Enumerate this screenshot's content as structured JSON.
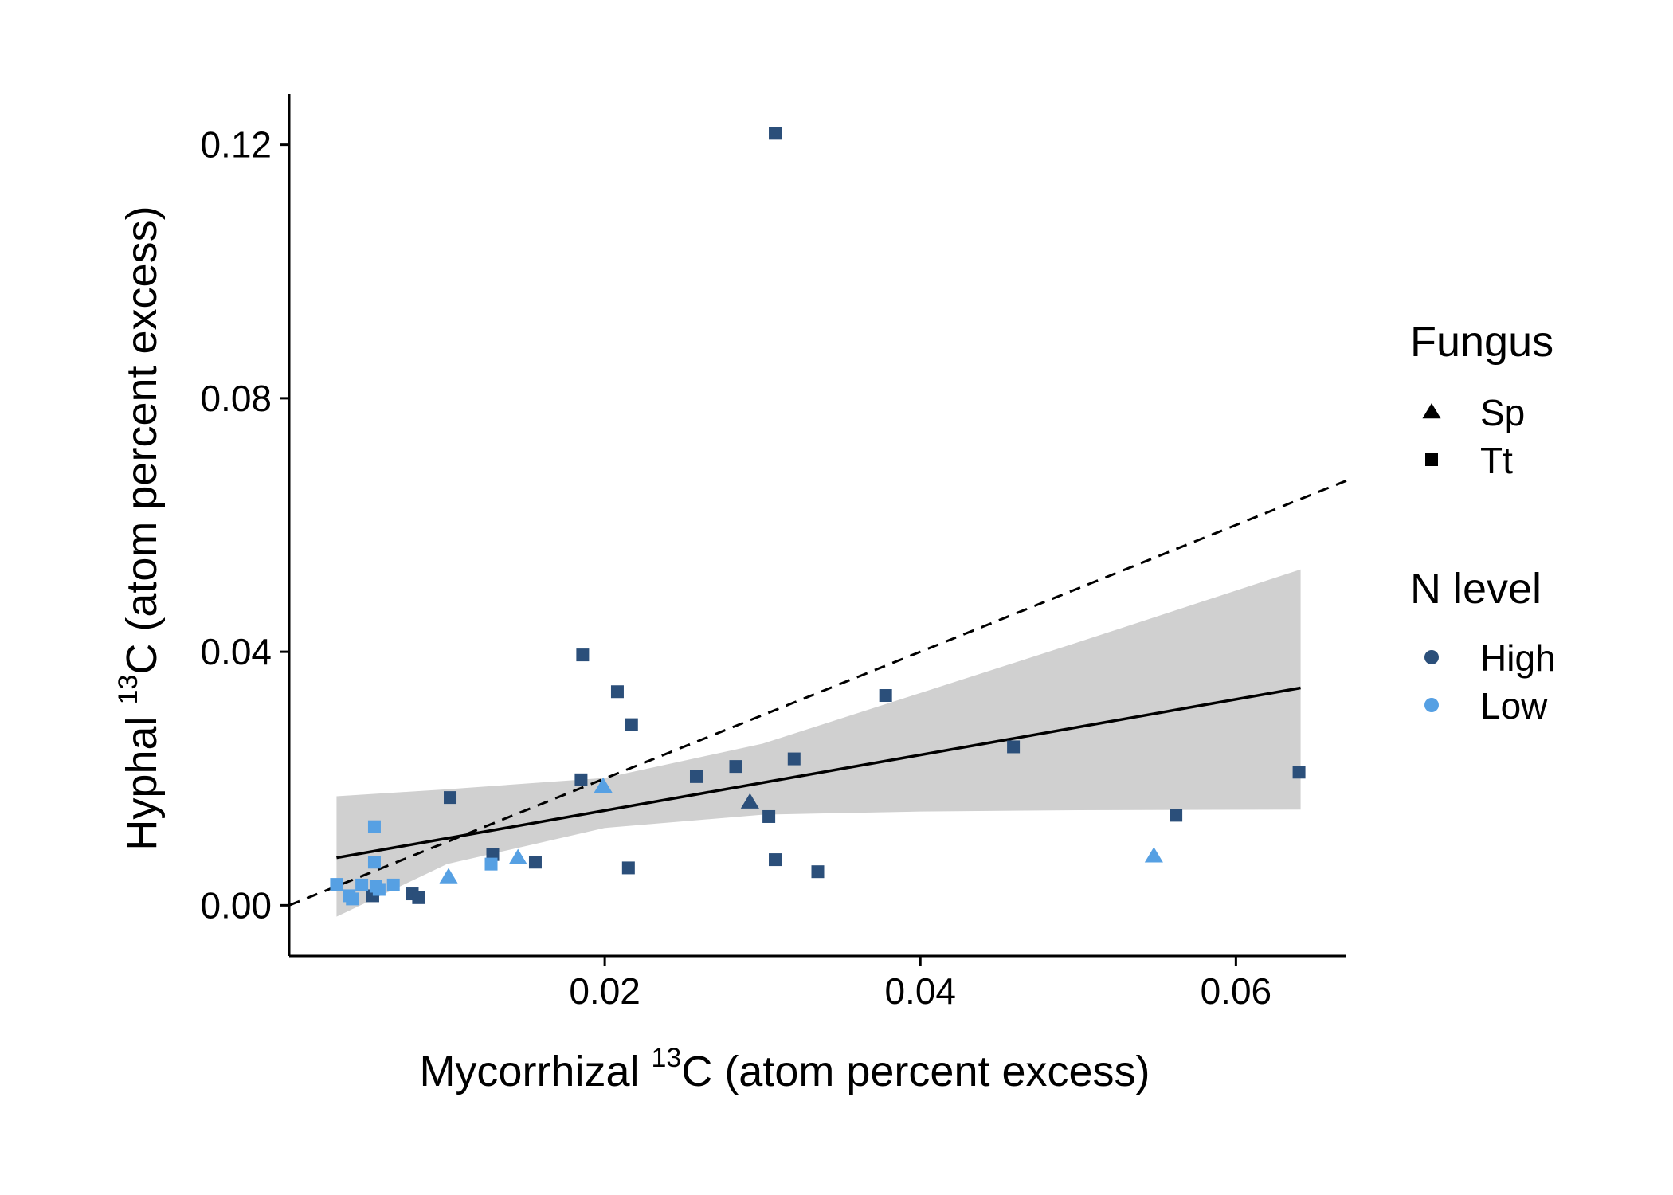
{
  "chart_data": {
    "type": "scatter",
    "xlabel": {
      "pre": "Mycorrhizal ",
      "sup": "13",
      "post": "C (atom percent excess)"
    },
    "ylabel": {
      "pre": "Hyphal ",
      "sup": "13",
      "post": "C (atom percent excess)"
    },
    "xlim": [
      0.0,
      0.067
    ],
    "ylim": [
      -0.008,
      0.128
    ],
    "x_ticks": [
      0.02,
      0.04,
      0.06
    ],
    "y_ticks": [
      0.0,
      0.04,
      0.08,
      0.12
    ],
    "x_tick_labels": [
      "0.02",
      "0.04",
      "0.06"
    ],
    "y_tick_labels": [
      "0.00",
      "0.04",
      "0.08",
      "0.12"
    ],
    "grid": false,
    "legend_position": "right",
    "colors": {
      "High": "#2b4f7a",
      "Low": "#56a0e3",
      "band": "#d0d0d0",
      "line": "#000000"
    },
    "legends": [
      {
        "title": "Fungus",
        "entries": [
          {
            "label": "Sp",
            "shape": "triangle"
          },
          {
            "label": "Tt",
            "shape": "square"
          }
        ]
      },
      {
        "title": "N level",
        "entries": [
          {
            "label": "High",
            "color": "#2b4f7a"
          },
          {
            "label": "Low",
            "color": "#56a0e3"
          }
        ]
      }
    ],
    "reference_line": {
      "style": "dashed",
      "slope": 1,
      "intercept": 0,
      "x_range": [
        0.0,
        0.067
      ]
    },
    "fit": {
      "x": [
        0.003,
        0.0641
      ],
      "y": [
        0.0075,
        0.0343
      ],
      "band": {
        "x": [
          0.003,
          0.01,
          0.02,
          0.03,
          0.04,
          0.05,
          0.0641
        ],
        "lower": [
          -0.0018,
          0.0065,
          0.0122,
          0.0143,
          0.0148,
          0.015,
          0.0151
        ],
        "upper": [
          0.0172,
          0.0183,
          0.0201,
          0.0255,
          0.0335,
          0.0415,
          0.053
        ]
      }
    },
    "points": [
      {
        "x": 0.0308,
        "y": 0.1218,
        "fungus": "Tt",
        "n": "High"
      },
      {
        "x": 0.0186,
        "y": 0.0395,
        "fungus": "Tt",
        "n": "High"
      },
      {
        "x": 0.0208,
        "y": 0.0337,
        "fungus": "Tt",
        "n": "High"
      },
      {
        "x": 0.0217,
        "y": 0.0285,
        "fungus": "Tt",
        "n": "High"
      },
      {
        "x": 0.0378,
        "y": 0.0331,
        "fungus": "Tt",
        "n": "High"
      },
      {
        "x": 0.0459,
        "y": 0.025,
        "fungus": "Tt",
        "n": "High"
      },
      {
        "x": 0.032,
        "y": 0.0231,
        "fungus": "Tt",
        "n": "High"
      },
      {
        "x": 0.0283,
        "y": 0.0219,
        "fungus": "Tt",
        "n": "High"
      },
      {
        "x": 0.0258,
        "y": 0.0203,
        "fungus": "Tt",
        "n": "High"
      },
      {
        "x": 0.0185,
        "y": 0.0198,
        "fungus": "Tt",
        "n": "High"
      },
      {
        "x": 0.064,
        "y": 0.021,
        "fungus": "Tt",
        "n": "High"
      },
      {
        "x": 0.0102,
        "y": 0.017,
        "fungus": "Tt",
        "n": "High"
      },
      {
        "x": 0.0304,
        "y": 0.014,
        "fungus": "Tt",
        "n": "High"
      },
      {
        "x": 0.0562,
        "y": 0.0142,
        "fungus": "Tt",
        "n": "High"
      },
      {
        "x": 0.0129,
        "y": 0.008,
        "fungus": "Tt",
        "n": "High"
      },
      {
        "x": 0.0156,
        "y": 0.0068,
        "fungus": "Tt",
        "n": "High"
      },
      {
        "x": 0.0308,
        "y": 0.0072,
        "fungus": "Tt",
        "n": "High"
      },
      {
        "x": 0.0215,
        "y": 0.0059,
        "fungus": "Tt",
        "n": "High"
      },
      {
        "x": 0.0335,
        "y": 0.0053,
        "fungus": "Tt",
        "n": "High"
      },
      {
        "x": 0.0078,
        "y": 0.0018,
        "fungus": "Tt",
        "n": "High"
      },
      {
        "x": 0.0082,
        "y": 0.0012,
        "fungus": "Tt",
        "n": "High"
      },
      {
        "x": 0.0053,
        "y": 0.0015,
        "fungus": "Tt",
        "n": "High"
      },
      {
        "x": 0.0292,
        "y": 0.0163,
        "fungus": "Sp",
        "n": "High"
      },
      {
        "x": 0.0054,
        "y": 0.0124,
        "fungus": "Tt",
        "n": "Low"
      },
      {
        "x": 0.0054,
        "y": 0.0068,
        "fungus": "Tt",
        "n": "Low"
      },
      {
        "x": 0.0128,
        "y": 0.0065,
        "fungus": "Tt",
        "n": "Low"
      },
      {
        "x": 0.003,
        "y": 0.0033,
        "fungus": "Tt",
        "n": "Low"
      },
      {
        "x": 0.0046,
        "y": 0.0032,
        "fungus": "Tt",
        "n": "Low"
      },
      {
        "x": 0.0055,
        "y": 0.003,
        "fungus": "Tt",
        "n": "Low"
      },
      {
        "x": 0.0066,
        "y": 0.0032,
        "fungus": "Tt",
        "n": "Low"
      },
      {
        "x": 0.0038,
        "y": 0.0015,
        "fungus": "Tt",
        "n": "Low"
      },
      {
        "x": 0.004,
        "y": 0.001,
        "fungus": "Tt",
        "n": "Low"
      },
      {
        "x": 0.0057,
        "y": 0.0025,
        "fungus": "Tt",
        "n": "Low"
      },
      {
        "x": 0.0199,
        "y": 0.0188,
        "fungus": "Sp",
        "n": "Low"
      },
      {
        "x": 0.0145,
        "y": 0.0075,
        "fungus": "Sp",
        "n": "Low"
      },
      {
        "x": 0.0101,
        "y": 0.0045,
        "fungus": "Sp",
        "n": "Low"
      },
      {
        "x": 0.0548,
        "y": 0.0078,
        "fungus": "Sp",
        "n": "Low"
      }
    ]
  }
}
